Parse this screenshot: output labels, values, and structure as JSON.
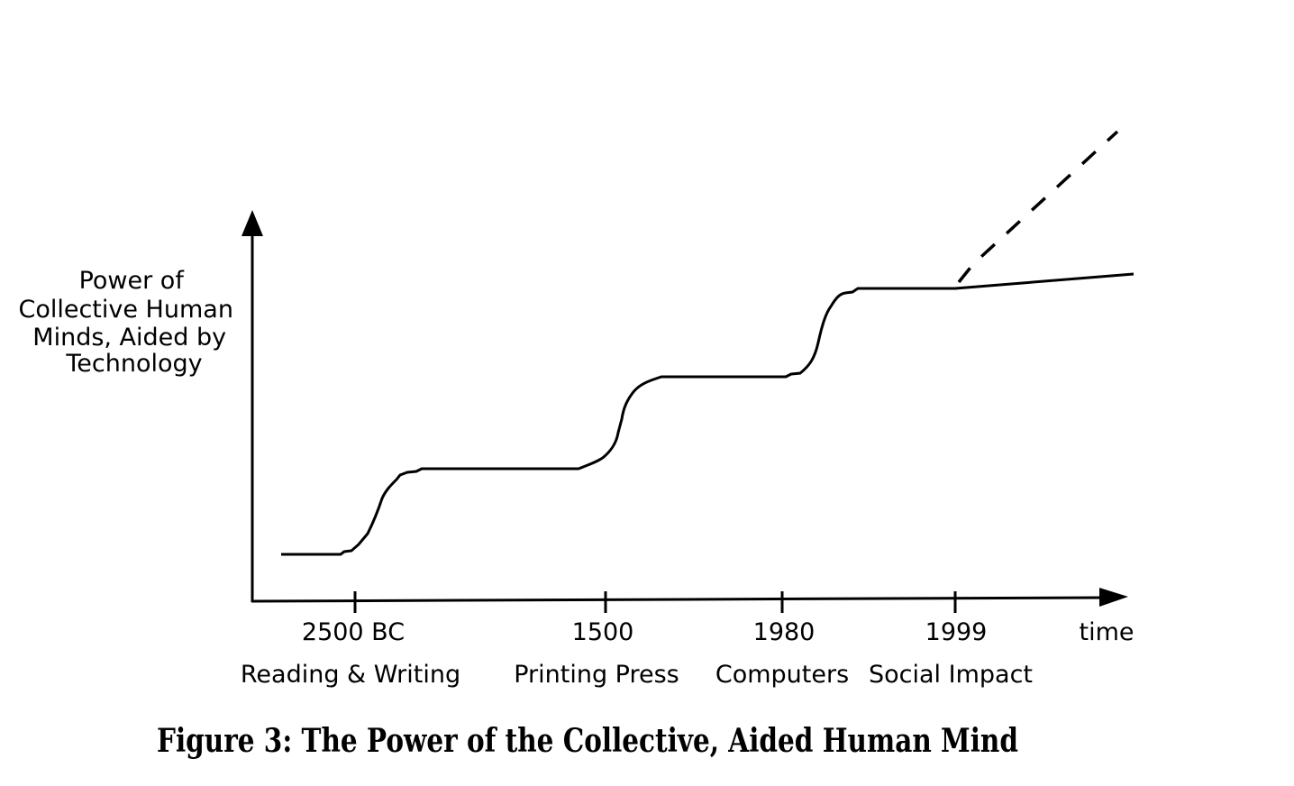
{
  "y_axis_label": [
    "Power of",
    "Collective Human",
    "Minds, Aided by",
    "Technology"
  ],
  "x_axis_label": "time",
  "milestones": [
    {
      "year": "2500 BC",
      "name": "Reading & Writing"
    },
    {
      "year": "1500",
      "name": "Printing Press"
    },
    {
      "year": "1980",
      "name": "Computers"
    },
    {
      "year": "1999",
      "name": "Social Impact"
    }
  ],
  "caption": "Figure 3: The Power of the Collective, Aided Human Mind",
  "line_color": "#000000"
}
